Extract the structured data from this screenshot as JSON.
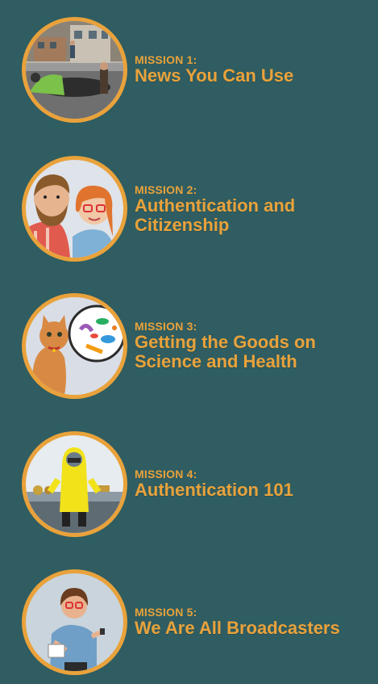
{
  "missions": [
    {
      "number": "MISSION 1:",
      "title": "News You Can Use",
      "icon": "street-sinkhole-illustration"
    },
    {
      "number": "MISSION 2:",
      "title": "Authentication and Citizenship",
      "icon": "two-people-illustration"
    },
    {
      "number": "MISSION 3:",
      "title": "Getting the Goods on Science and Health",
      "icon": "cat-bacteria-illustration"
    },
    {
      "number": "MISSION 4:",
      "title": "Authentication 101",
      "icon": "hazmat-lab-illustration"
    },
    {
      "number": "MISSION 5:",
      "title": "We Are All Broadcasters",
      "icon": "reporter-woman-illustration"
    }
  ],
  "colors": {
    "background": "#2f5d61",
    "accent": "#e9a23b"
  }
}
